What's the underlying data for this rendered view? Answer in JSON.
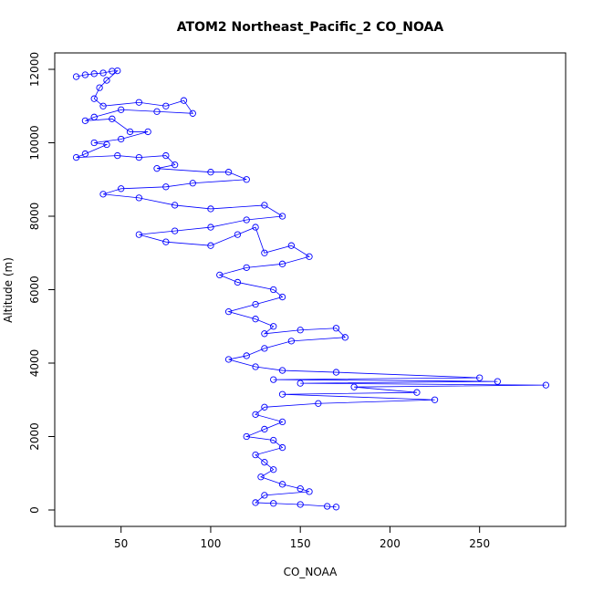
{
  "chart_data": {
    "type": "line",
    "marker": "circle",
    "title": "ATOM2 Northeast_Pacific_2 CO_NOAA",
    "xlabel": "CO_NOAA",
    "ylabel": "Altitude (m)",
    "color": "#0000ff",
    "x": [
      25,
      30,
      35,
      40,
      45,
      48,
      42,
      38,
      35,
      40,
      60,
      75,
      85,
      90,
      70,
      50,
      35,
      30,
      45,
      55,
      65,
      50,
      35,
      42,
      30,
      25,
      48,
      60,
      75,
      80,
      70,
      100,
      110,
      120,
      90,
      75,
      50,
      40,
      60,
      80,
      100,
      130,
      140,
      120,
      100,
      80,
      60,
      75,
      100,
      115,
      125,
      130,
      145,
      155,
      140,
      120,
      105,
      115,
      135,
      140,
      125,
      110,
      125,
      135,
      130,
      150,
      170,
      175,
      145,
      130,
      120,
      110,
      125,
      140,
      170,
      250,
      135,
      260,
      150,
      287,
      180,
      215,
      140,
      225,
      160,
      130,
      125,
      140,
      130,
      120,
      135,
      140,
      125,
      130,
      135,
      128,
      140,
      150,
      155,
      130,
      125,
      135,
      150,
      165,
      170
    ],
    "values": [
      11800,
      11850,
      11880,
      11900,
      11950,
      11960,
      11700,
      11500,
      11200,
      11000,
      11100,
      11000,
      11150,
      10800,
      10850,
      10900,
      10700,
      10600,
      10650,
      10300,
      10300,
      10100,
      10000,
      9950,
      9700,
      9600,
      9650,
      9600,
      9650,
      9400,
      9300,
      9200,
      9200,
      9000,
      8900,
      8800,
      8750,
      8600,
      8500,
      8300,
      8200,
      8300,
      8000,
      7900,
      7700,
      7600,
      7500,
      7300,
      7200,
      7500,
      7700,
      7000,
      7200,
      6900,
      6700,
      6600,
      6400,
      6200,
      6000,
      5800,
      5600,
      5400,
      5200,
      5000,
      4800,
      4900,
      4950,
      4700,
      4600,
      4400,
      4200,
      4100,
      3900,
      3800,
      3750,
      3600,
      3550,
      3500,
      3450,
      3400,
      3350,
      3200,
      3150,
      3000,
      2900,
      2800,
      2600,
      2400,
      2200,
      2000,
      1900,
      1700,
      1500,
      1300,
      1100,
      900,
      700,
      580,
      500,
      400,
      200,
      180,
      150,
      100,
      80
    ],
    "xlim": [
      13,
      298
    ],
    "ylim": [
      -447,
      12447
    ],
    "xticks": [
      50,
      100,
      150,
      200,
      250
    ],
    "yticks": [
      0,
      2000,
      4000,
      6000,
      8000,
      10000,
      12000
    ]
  }
}
